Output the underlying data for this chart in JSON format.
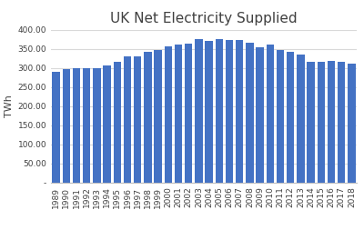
{
  "title": "UK Net Electricity Supplied",
  "ylabel": "TWh",
  "years": [
    1989,
    1990,
    1991,
    1992,
    1993,
    1994,
    1995,
    1996,
    1997,
    1998,
    1999,
    2000,
    2001,
    2002,
    2003,
    2004,
    2005,
    2006,
    2007,
    2008,
    2009,
    2010,
    2011,
    2012,
    2013,
    2014,
    2015,
    2016,
    2017,
    2018
  ],
  "values": [
    291,
    297,
    300,
    299,
    300,
    307,
    317,
    332,
    331,
    342,
    348,
    357,
    363,
    365,
    376,
    372,
    376,
    373,
    374,
    366,
    355,
    361,
    348,
    342,
    335,
    316,
    316,
    318,
    317,
    312
  ],
  "bar_color": "#4472C4",
  "ylim": [
    0,
    400
  ],
  "yticks": [
    0,
    50,
    100,
    150,
    200,
    250,
    300,
    350,
    400
  ],
  "ytick_labels": [
    "-",
    "50.00",
    "100.00",
    "150.00",
    "200.00",
    "250.00",
    "300.00",
    "350.00",
    "400.00"
  ],
  "background_color": "#ffffff",
  "grid_color": "#d9d9d9",
  "title_fontsize": 11,
  "ylabel_fontsize": 8,
  "tick_fontsize": 6.5,
  "bar_width": 0.75
}
